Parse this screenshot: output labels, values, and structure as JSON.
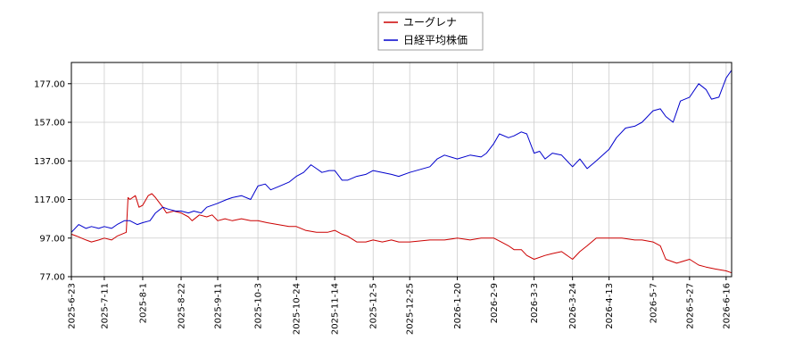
{
  "chart_data": {
    "type": "line",
    "title": "",
    "xlabel": "",
    "ylabel": "",
    "ylim": [
      77,
      188
    ],
    "yticks": [
      "77.00",
      "97.00",
      "117.00",
      "137.00",
      "157.00",
      "177.00"
    ],
    "xticks": [
      "2025-6-23",
      "2025-7-11",
      "2025-8-1",
      "2025-8-22",
      "2025-9-11",
      "2025-10-3",
      "2025-10-24",
      "2025-11-14",
      "2025-12-5",
      "2025-12-25",
      "2026-1-20",
      "2026-2-9",
      "2026-3-3",
      "2026-3-24",
      "2026-4-13",
      "2026-5-7",
      "2026-5-27",
      "2026-6-16"
    ],
    "grid": true,
    "legend_position": "top-center",
    "series": [
      {
        "name": "ユーグレナ",
        "color": "#cc0000",
        "points": [
          [
            "2025-6-23",
            99
          ],
          [
            "2025-6-26",
            98
          ],
          [
            "2025-7-1",
            96
          ],
          [
            "2025-7-4",
            95
          ],
          [
            "2025-7-8",
            96
          ],
          [
            "2025-7-11",
            97
          ],
          [
            "2025-7-15",
            96
          ],
          [
            "2025-7-18",
            98
          ],
          [
            "2025-7-23",
            100
          ],
          [
            "2025-7-24",
            118
          ],
          [
            "2025-7-25",
            117
          ],
          [
            "2025-7-28",
            119
          ],
          [
            "2025-7-30",
            113
          ],
          [
            "2025-8-1",
            114
          ],
          [
            "2025-8-4",
            119
          ],
          [
            "2025-8-6",
            120
          ],
          [
            "2025-8-8",
            118
          ],
          [
            "2025-8-12",
            113
          ],
          [
            "2025-8-14",
            110
          ],
          [
            "2025-8-18",
            111
          ],
          [
            "2025-8-22",
            110
          ],
          [
            "2025-8-26",
            108
          ],
          [
            "2025-8-28",
            106
          ],
          [
            "2025-9-1",
            109
          ],
          [
            "2025-9-5",
            108
          ],
          [
            "2025-9-8",
            109
          ],
          [
            "2025-9-11",
            106
          ],
          [
            "2025-9-15",
            107
          ],
          [
            "2025-9-19",
            106
          ],
          [
            "2025-9-24",
            107
          ],
          [
            "2025-9-29",
            106
          ],
          [
            "2025-10-3",
            106
          ],
          [
            "2025-10-8",
            105
          ],
          [
            "2025-10-14",
            104
          ],
          [
            "2025-10-20",
            103
          ],
          [
            "2025-10-24",
            103
          ],
          [
            "2025-10-29",
            101
          ],
          [
            "2025-11-4",
            100
          ],
          [
            "2025-11-10",
            100
          ],
          [
            "2025-11-14",
            101
          ],
          [
            "2025-11-18",
            99
          ],
          [
            "2025-11-21",
            98
          ],
          [
            "2025-11-26",
            95
          ],
          [
            "2025-12-1",
            95
          ],
          [
            "2025-12-5",
            96
          ],
          [
            "2025-12-10",
            95
          ],
          [
            "2025-12-15",
            96
          ],
          [
            "2025-12-19",
            95
          ],
          [
            "2025-12-25",
            95
          ],
          [
            "2026-1-5",
            96
          ],
          [
            "2026-1-13",
            96
          ],
          [
            "2026-1-20",
            97
          ],
          [
            "2026-1-27",
            96
          ],
          [
            "2026-2-2",
            97
          ],
          [
            "2026-2-9",
            97
          ],
          [
            "2026-2-13",
            95
          ],
          [
            "2026-2-17",
            93
          ],
          [
            "2026-2-20",
            91
          ],
          [
            "2026-2-24",
            91
          ],
          [
            "2026-2-27",
            88
          ],
          [
            "2026-3-3",
            86
          ],
          [
            "2026-3-9",
            88
          ],
          [
            "2026-3-13",
            89
          ],
          [
            "2026-3-18",
            90
          ],
          [
            "2026-3-24",
            86
          ],
          [
            "2026-3-28",
            90
          ],
          [
            "2026-4-1",
            93
          ],
          [
            "2026-4-6",
            97
          ],
          [
            "2026-4-13",
            97
          ],
          [
            "2026-4-20",
            97
          ],
          [
            "2026-4-27",
            96
          ],
          [
            "2026-5-1",
            96
          ],
          [
            "2026-5-7",
            95
          ],
          [
            "2026-5-11",
            93
          ],
          [
            "2026-5-14",
            86
          ],
          [
            "2026-5-20",
            84
          ],
          [
            "2026-5-27",
            86
          ],
          [
            "2026-6-1",
            83
          ],
          [
            "2026-6-5",
            82
          ],
          [
            "2026-6-10",
            81
          ],
          [
            "2026-6-16",
            80
          ],
          [
            "2026-6-19",
            79
          ]
        ]
      },
      {
        "name": "日経平均株価",
        "color": "#0000cc",
        "points": [
          [
            "2025-6-23",
            100
          ],
          [
            "2025-6-27",
            104
          ],
          [
            "2025-7-1",
            102
          ],
          [
            "2025-7-4",
            103
          ],
          [
            "2025-7-8",
            102
          ],
          [
            "2025-7-11",
            103
          ],
          [
            "2025-7-15",
            102
          ],
          [
            "2025-7-18",
            104
          ],
          [
            "2025-7-22",
            106
          ],
          [
            "2025-7-25",
            106
          ],
          [
            "2025-7-29",
            104
          ],
          [
            "2025-8-1",
            105
          ],
          [
            "2025-8-5",
            106
          ],
          [
            "2025-8-8",
            110
          ],
          [
            "2025-8-12",
            113
          ],
          [
            "2025-8-15",
            112
          ],
          [
            "2025-8-19",
            111
          ],
          [
            "2025-8-22",
            111
          ],
          [
            "2025-8-26",
            110
          ],
          [
            "2025-8-29",
            111
          ],
          [
            "2025-9-2",
            110
          ],
          [
            "2025-9-5",
            113
          ],
          [
            "2025-9-11",
            115
          ],
          [
            "2025-9-16",
            117
          ],
          [
            "2025-9-19",
            118
          ],
          [
            "2025-9-24",
            119
          ],
          [
            "2025-9-29",
            117
          ],
          [
            "2025-10-3",
            124
          ],
          [
            "2025-10-7",
            125
          ],
          [
            "2025-10-10",
            122
          ],
          [
            "2025-10-15",
            124
          ],
          [
            "2025-10-20",
            126
          ],
          [
            "2025-10-24",
            129
          ],
          [
            "2025-10-28",
            131
          ],
          [
            "2025-11-1",
            135
          ],
          [
            "2025-11-4",
            133
          ],
          [
            "2025-11-7",
            131
          ],
          [
            "2025-11-11",
            132
          ],
          [
            "2025-11-14",
            132
          ],
          [
            "2025-11-18",
            127
          ],
          [
            "2025-11-21",
            127
          ],
          [
            "2025-11-26",
            129
          ],
          [
            "2025-12-1",
            130
          ],
          [
            "2025-12-5",
            132
          ],
          [
            "2025-12-10",
            131
          ],
          [
            "2025-12-15",
            130
          ],
          [
            "2025-12-19",
            129
          ],
          [
            "2025-12-25",
            131
          ],
          [
            "2026-1-5",
            134
          ],
          [
            "2026-1-9",
            138
          ],
          [
            "2026-1-13",
            140
          ],
          [
            "2026-1-20",
            138
          ],
          [
            "2026-1-27",
            140
          ],
          [
            "2026-2-2",
            139
          ],
          [
            "2026-2-5",
            141
          ],
          [
            "2026-2-9",
            146
          ],
          [
            "2026-2-12",
            151
          ],
          [
            "2026-2-17",
            149
          ],
          [
            "2026-2-20",
            150
          ],
          [
            "2026-2-24",
            152
          ],
          [
            "2026-2-27",
            151
          ],
          [
            "2026-3-3",
            141
          ],
          [
            "2026-3-6",
            142
          ],
          [
            "2026-3-9",
            138
          ],
          [
            "2026-3-13",
            141
          ],
          [
            "2026-3-18",
            140
          ],
          [
            "2026-3-24",
            134
          ],
          [
            "2026-3-28",
            138
          ],
          [
            "2026-4-1",
            133
          ],
          [
            "2026-4-6",
            137
          ],
          [
            "2026-4-13",
            143
          ],
          [
            "2026-4-17",
            149
          ],
          [
            "2026-4-22",
            154
          ],
          [
            "2026-4-27",
            155
          ],
          [
            "2026-5-1",
            157
          ],
          [
            "2026-5-7",
            163
          ],
          [
            "2026-5-11",
            164
          ],
          [
            "2026-5-14",
            160
          ],
          [
            "2026-5-18",
            157
          ],
          [
            "2026-5-22",
            168
          ],
          [
            "2026-5-27",
            170
          ],
          [
            "2026-6-1",
            177
          ],
          [
            "2026-6-5",
            174
          ],
          [
            "2026-6-8",
            169
          ],
          [
            "2026-6-12",
            170
          ],
          [
            "2026-6-16",
            180
          ],
          [
            "2026-6-19",
            184
          ]
        ]
      }
    ]
  }
}
